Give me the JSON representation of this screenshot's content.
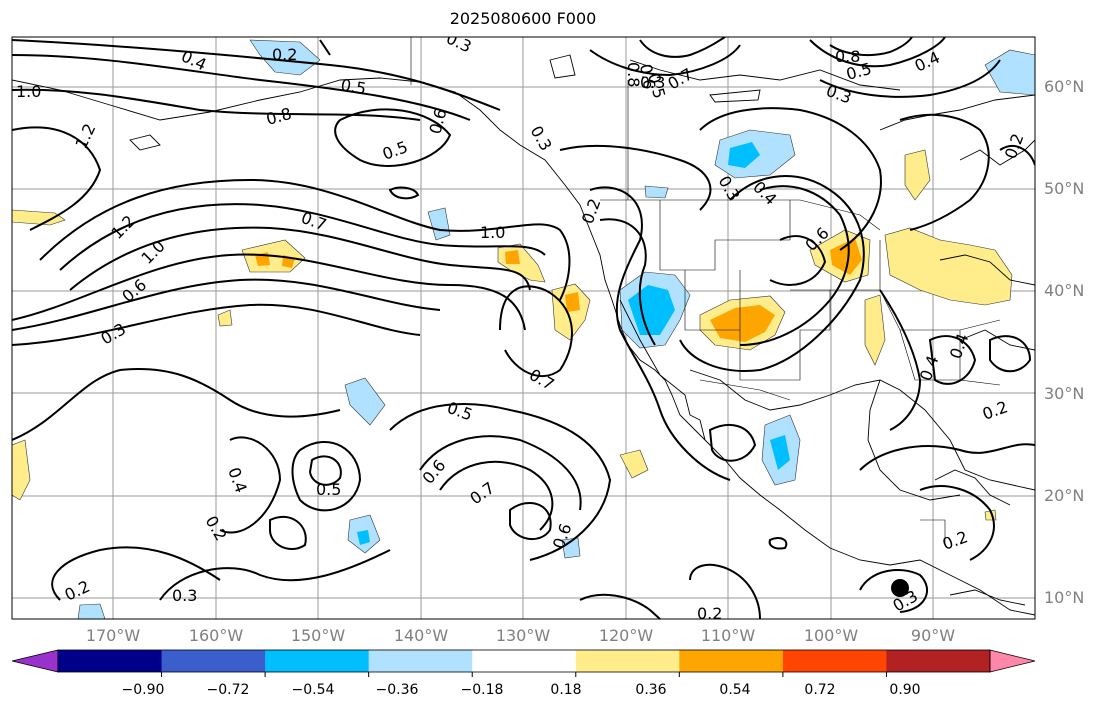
{
  "title": "2025080600 F000",
  "lat_labels": [
    "60°N",
    "50°N",
    "40°N",
    "30°N",
    "20°N",
    "10°N"
  ],
  "lon_labels": [
    "170°W",
    "160°W",
    "150°W",
    "140°W",
    "130°W",
    "120°W",
    "110°W",
    "100°W",
    "90°W"
  ],
  "colorbar": {
    "ticks": [
      "−0.90",
      "−0.72",
      "−0.54",
      "−0.36",
      "−0.18",
      "0.18",
      "0.36",
      "0.54",
      "0.72",
      "0.90"
    ],
    "colors": [
      "#9932cc",
      "#00008b",
      "#3a5fcd",
      "#00bfff",
      "#b0e2ff",
      "#ffffff",
      "#ffec8b",
      "#ffa500",
      "#ff4500",
      "#b22222",
      "#ff88aa"
    ]
  },
  "contour_labels": [
    {
      "text": "0.4"
    },
    {
      "text": "0.2"
    },
    {
      "text": "0.3"
    },
    {
      "text": "1.0"
    },
    {
      "text": "0.5"
    },
    {
      "text": "1.2"
    },
    {
      "text": "0.8"
    },
    {
      "text": "0.5"
    },
    {
      "text": "0.6"
    },
    {
      "text": "0.3"
    },
    {
      "text": "0.7"
    },
    {
      "text": "1.0"
    },
    {
      "text": "1.2"
    },
    {
      "text": "1.0"
    },
    {
      "text": "0.6"
    },
    {
      "text": "0.3"
    },
    {
      "text": "0.7"
    },
    {
      "text": "0.5"
    },
    {
      "text": "0.6"
    },
    {
      "text": "0.7"
    },
    {
      "text": "0.6"
    },
    {
      "text": "0.5"
    },
    {
      "text": "0.4"
    },
    {
      "text": "0.2"
    },
    {
      "text": "0.3"
    },
    {
      "text": "0.2"
    },
    {
      "text": "0.8"
    },
    {
      "text": "0.6"
    },
    {
      "text": "0.5"
    },
    {
      "text": "0.3"
    },
    {
      "text": "0.7"
    },
    {
      "text": "0.8"
    },
    {
      "text": "0.5"
    },
    {
      "text": "0.3"
    },
    {
      "text": "0.4"
    },
    {
      "text": "0.3"
    },
    {
      "text": "0.4"
    },
    {
      "text": "0.6"
    },
    {
      "text": "0.4"
    },
    {
      "text": "0.2"
    },
    {
      "text": "0.2"
    },
    {
      "text": "0.2"
    },
    {
      "text": "0.3"
    },
    {
      "text": "0.2"
    },
    {
      "text": "0.4"
    },
    {
      "text": "0.2"
    }
  ]
}
